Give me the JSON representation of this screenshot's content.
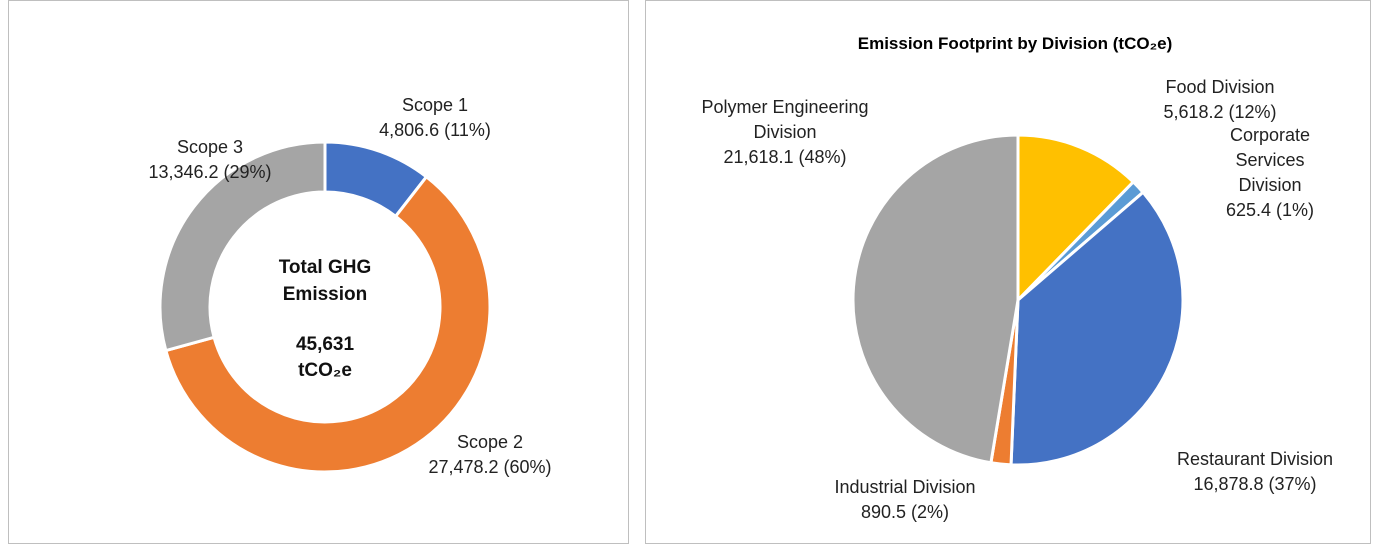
{
  "chart_data": [
    {
      "type": "donut",
      "categories": [
        "Scope 1",
        "Scope 2",
        "Scope 3"
      ],
      "values": [
        4806.6,
        27478.2,
        13346.2
      ],
      "value_labels": [
        "4,806.6 (11%)",
        "27,478.2 (60%)",
        "13,346.2 (29%)"
      ],
      "colors": [
        "#4472c4",
        "#ed7d31",
        "#a5a5a5"
      ],
      "center_label": [
        "Total GHG",
        "Emission",
        "45,631",
        "tCO₂e"
      ]
    },
    {
      "type": "pie",
      "title": "Emission Footprint by Division (tCO₂e)",
      "categories": [
        "Food Division",
        "Corporate Services Division",
        "Restaurant Division",
        "Industrial Division",
        "Polymer Engineering Division"
      ],
      "values": [
        5618.2,
        625.4,
        16878.8,
        890.5,
        21618.1
      ],
      "value_labels": [
        "5,618.2 (12%)",
        "625.4 (1%)",
        "16,878.8 (37%)",
        "890.5 (2%)",
        "21,618.1 (48%)"
      ],
      "colors": [
        "#ffc000",
        "#5b9bd5",
        "#4472c4",
        "#ed7d31",
        "#a5a5a5"
      ]
    }
  ]
}
